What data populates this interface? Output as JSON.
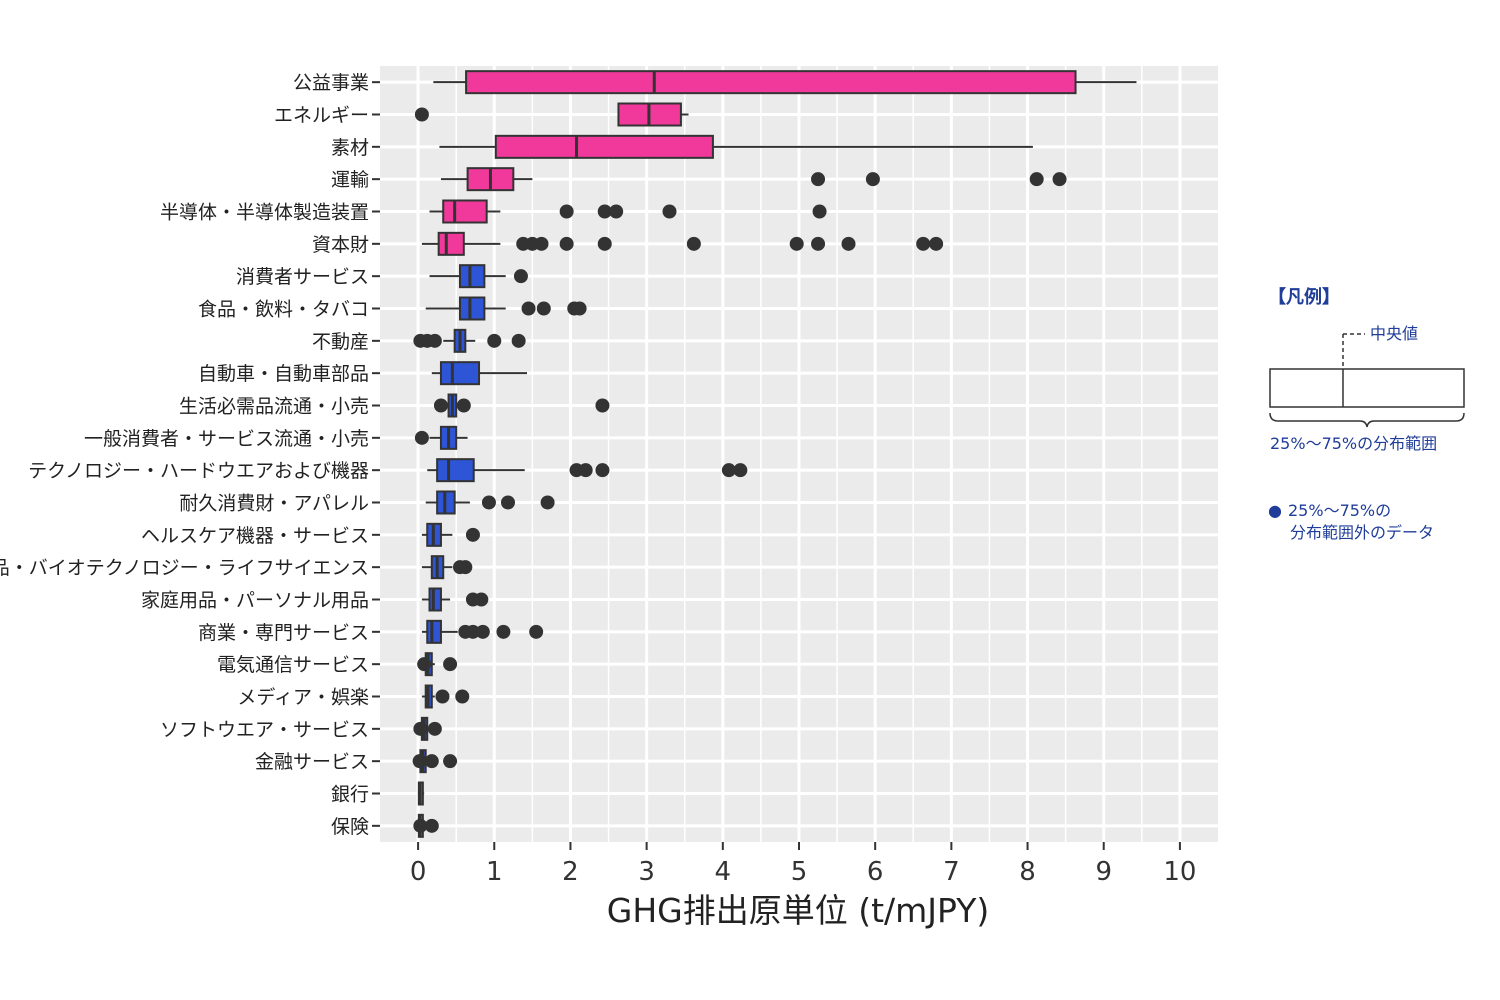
{
  "chart_data": {
    "type": "boxplot",
    "orientation": "horizontal",
    "xlabel": "GHG排出原単位 (t/mJPY)",
    "xlim": [
      -0.5,
      10.5
    ],
    "xticks": [
      0,
      1,
      2,
      3,
      4,
      5,
      6,
      7,
      8,
      9,
      10
    ],
    "colors": {
      "high": "#f0399b",
      "mid": "#2d55d6",
      "panel": "#ebebeb",
      "grid": "#ffffff",
      "ink": "#333333",
      "legend": "#1f3d99"
    },
    "series": [
      {
        "name": "公益事業",
        "group": "high",
        "whisker_low": 0.2,
        "q1": 0.63,
        "median": 3.1,
        "q3": 8.63,
        "whisker_high": 9.43,
        "outliers": []
      },
      {
        "name": "エネルギー",
        "group": "high",
        "whisker_low": 2.62,
        "q1": 2.63,
        "median": 3.03,
        "q3": 3.45,
        "whisker_high": 3.55,
        "outliers": [
          0.05
        ]
      },
      {
        "name": "素材",
        "group": "high",
        "whisker_low": 0.28,
        "q1": 1.02,
        "median": 2.08,
        "q3": 3.87,
        "whisker_high": 8.07,
        "outliers": []
      },
      {
        "name": "運輸",
        "group": "high",
        "whisker_low": 0.3,
        "q1": 0.65,
        "median": 0.95,
        "q3": 1.25,
        "whisker_high": 1.5,
        "outliers": [
          5.25,
          5.97,
          8.12,
          8.42
        ]
      },
      {
        "name": "半導体・半導体製造装置",
        "group": "high",
        "whisker_low": 0.15,
        "q1": 0.33,
        "median": 0.48,
        "q3": 0.9,
        "whisker_high": 1.08,
        "outliers": [
          1.95,
          2.45,
          2.6,
          3.3,
          5.27
        ]
      },
      {
        "name": "資本財",
        "group": "high",
        "whisker_low": 0.05,
        "q1": 0.27,
        "median": 0.37,
        "q3": 0.6,
        "whisker_high": 1.08,
        "outliers": [
          1.38,
          1.5,
          1.62,
          1.95,
          2.45,
          3.62,
          4.97,
          5.25,
          5.65,
          6.63,
          6.8
        ]
      },
      {
        "name": "消費者サービス",
        "group": "mid",
        "whisker_low": 0.15,
        "q1": 0.55,
        "median": 0.68,
        "q3": 0.87,
        "whisker_high": 1.15,
        "outliers": [
          1.35
        ]
      },
      {
        "name": "食品・飲料・タバコ",
        "group": "mid",
        "whisker_low": 0.1,
        "q1": 0.55,
        "median": 0.68,
        "q3": 0.87,
        "whisker_high": 1.15,
        "outliers": [
          1.45,
          1.65,
          2.05,
          2.12
        ]
      },
      {
        "name": "不動産",
        "group": "mid",
        "whisker_low": 0.33,
        "q1": 0.48,
        "median": 0.55,
        "q3": 0.62,
        "whisker_high": 0.75,
        "outliers": [
          0.03,
          0.12,
          0.22,
          1.0,
          1.32
        ]
      },
      {
        "name": "自動車・自動車部品",
        "group": "mid",
        "whisker_low": 0.18,
        "q1": 0.3,
        "median": 0.45,
        "q3": 0.8,
        "whisker_high": 1.43,
        "outliers": []
      },
      {
        "name": "生活必需品流通・小売",
        "group": "mid",
        "whisker_low": 0.33,
        "q1": 0.4,
        "median": 0.45,
        "q3": 0.5,
        "whisker_high": 0.52,
        "outliers": [
          0.3,
          0.6,
          2.42
        ]
      },
      {
        "name": "一般消費者・サービス流通・小売",
        "group": "mid",
        "whisker_low": 0.15,
        "q1": 0.3,
        "median": 0.4,
        "q3": 0.5,
        "whisker_high": 0.65,
        "outliers": [
          0.05
        ]
      },
      {
        "name": "テクノロジー・ハードウエアおよび機器",
        "group": "mid",
        "whisker_low": 0.12,
        "q1": 0.25,
        "median": 0.4,
        "q3": 0.73,
        "whisker_high": 1.4,
        "outliers": [
          2.08,
          2.2,
          2.42,
          4.08,
          4.23
        ]
      },
      {
        "name": "耐久消費財・アパレル",
        "group": "mid",
        "whisker_low": 0.1,
        "q1": 0.25,
        "median": 0.35,
        "q3": 0.48,
        "whisker_high": 0.68,
        "outliers": [
          0.93,
          1.18,
          1.7
        ]
      },
      {
        "name": "ヘルスケア機器・サービス",
        "group": "mid",
        "whisker_low": 0.05,
        "q1": 0.12,
        "median": 0.2,
        "q3": 0.3,
        "whisker_high": 0.45,
        "outliers": [
          0.72
        ]
      },
      {
        "name": "医薬品・バイオテクノロジー・ライフサイエンス",
        "group": "mid",
        "whisker_low": 0.05,
        "q1": 0.18,
        "median": 0.25,
        "q3": 0.33,
        "whisker_high": 0.45,
        "outliers": [
          0.55,
          0.62
        ]
      },
      {
        "name": "家庭用品・パーソナル用品",
        "group": "mid",
        "whisker_low": 0.05,
        "q1": 0.15,
        "median": 0.2,
        "q3": 0.3,
        "whisker_high": 0.42,
        "outliers": [
          0.72,
          0.83
        ]
      },
      {
        "name": "商業・専門サービス",
        "group": "mid",
        "whisker_low": 0.05,
        "q1": 0.12,
        "median": 0.18,
        "q3": 0.3,
        "whisker_high": 0.52,
        "outliers": [
          0.62,
          0.72,
          0.85,
          1.12,
          1.55
        ]
      },
      {
        "name": "電気通信サービス",
        "group": "mid",
        "whisker_low": 0.05,
        "q1": 0.1,
        "median": 0.13,
        "q3": 0.18,
        "whisker_high": 0.22,
        "outliers": [
          0.08,
          0.42
        ]
      },
      {
        "name": "メディア・娯楽",
        "group": "mid",
        "whisker_low": 0.05,
        "q1": 0.1,
        "median": 0.13,
        "q3": 0.18,
        "whisker_high": 0.22,
        "outliers": [
          0.32,
          0.58
        ]
      },
      {
        "name": "ソフトウエア・サービス",
        "group": "mid",
        "whisker_low": 0.02,
        "q1": 0.05,
        "median": 0.08,
        "q3": 0.12,
        "whisker_high": 0.18,
        "outliers": [
          0.03,
          0.22
        ]
      },
      {
        "name": "金融サービス",
        "group": "mid",
        "whisker_low": 0.01,
        "q1": 0.03,
        "median": 0.06,
        "q3": 0.1,
        "whisker_high": 0.15,
        "outliers": [
          0.02,
          0.18,
          0.42
        ]
      },
      {
        "name": "銀行",
        "group": "mid",
        "whisker_low": 0.0,
        "q1": 0.01,
        "median": 0.02,
        "q3": 0.06,
        "whisker_high": 0.08,
        "outliers": []
      },
      {
        "name": "保険",
        "group": "mid",
        "whisker_low": 0.0,
        "q1": 0.01,
        "median": 0.02,
        "q3": 0.04,
        "whisker_high": 0.06,
        "outliers": [
          0.03,
          0.18
        ]
      }
    ]
  },
  "legend": {
    "title": "【凡例】",
    "median_label": "中央値",
    "range_label": "25%～75%の分布範囲",
    "outlier_bullet": "●",
    "outlier_label_1": "25%～75%の",
    "outlier_label_2": "分布範囲外のデータ"
  }
}
